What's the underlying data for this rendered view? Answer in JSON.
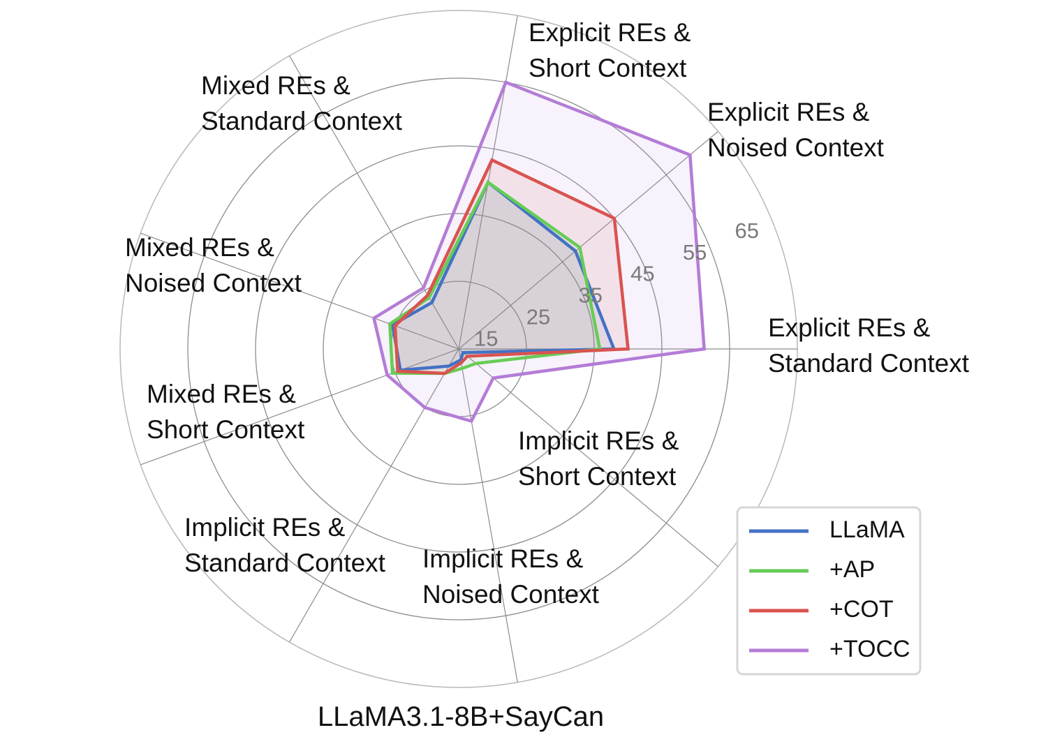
{
  "chart_data": {
    "type": "radar",
    "title": "LLaMA3.1-8B+SayCan",
    "radial_ticks": [
      "15",
      "25",
      "35",
      "45",
      "55",
      "65"
    ],
    "radial_tick_values": [
      15,
      25,
      35,
      45,
      55,
      65
    ],
    "rlim": [
      10,
      70
    ],
    "grid": true,
    "legend_position": "bottom-right",
    "axes": [
      {
        "line1": "Explicit REs &",
        "line2": "Standard Context"
      },
      {
        "line1": "Explicit REs &",
        "line2": "Noised Context"
      },
      {
        "line1": "Explicit REs &",
        "line2": "Short Context"
      },
      {
        "line1": "Mixed REs &",
        "line2": "Standard Context"
      },
      {
        "line1": "Mixed REs &",
        "line2": "Noised Context"
      },
      {
        "line1": "Mixed REs &",
        "line2": "Short Context"
      },
      {
        "line1": "Implicit REs &",
        "line2": "Standard Context"
      },
      {
        "line1": "Implicit REs &",
        "line2": "Noised Context"
      },
      {
        "line1": "Implicit REs &",
        "line2": "Short Context"
      }
    ],
    "series": [
      {
        "name": "LLaMA",
        "color": "#4472c4",
        "values": [
          37.5,
          37.0,
          40.0,
          19.5,
          22.5,
          21.0,
          13.5,
          12.0,
          11.0
        ]
      },
      {
        "name": "+AP",
        "color": "#66cc55",
        "values": [
          35.0,
          38.0,
          40.0,
          20.5,
          23.0,
          22.5,
          15.0,
          13.5,
          14.0
        ]
      },
      {
        "name": "+COT",
        "color": "#d9534f",
        "values": [
          40.0,
          46.0,
          44.0,
          21.0,
          22.0,
          21.5,
          15.0,
          12.5,
          12.0
        ]
      },
      {
        "name": "+TOCC",
        "color": "#b47cd6",
        "values": [
          53.5,
          63.5,
          58.0,
          22.5,
          26.0,
          23.5,
          22.0,
          23.0,
          18.0
        ]
      }
    ]
  }
}
